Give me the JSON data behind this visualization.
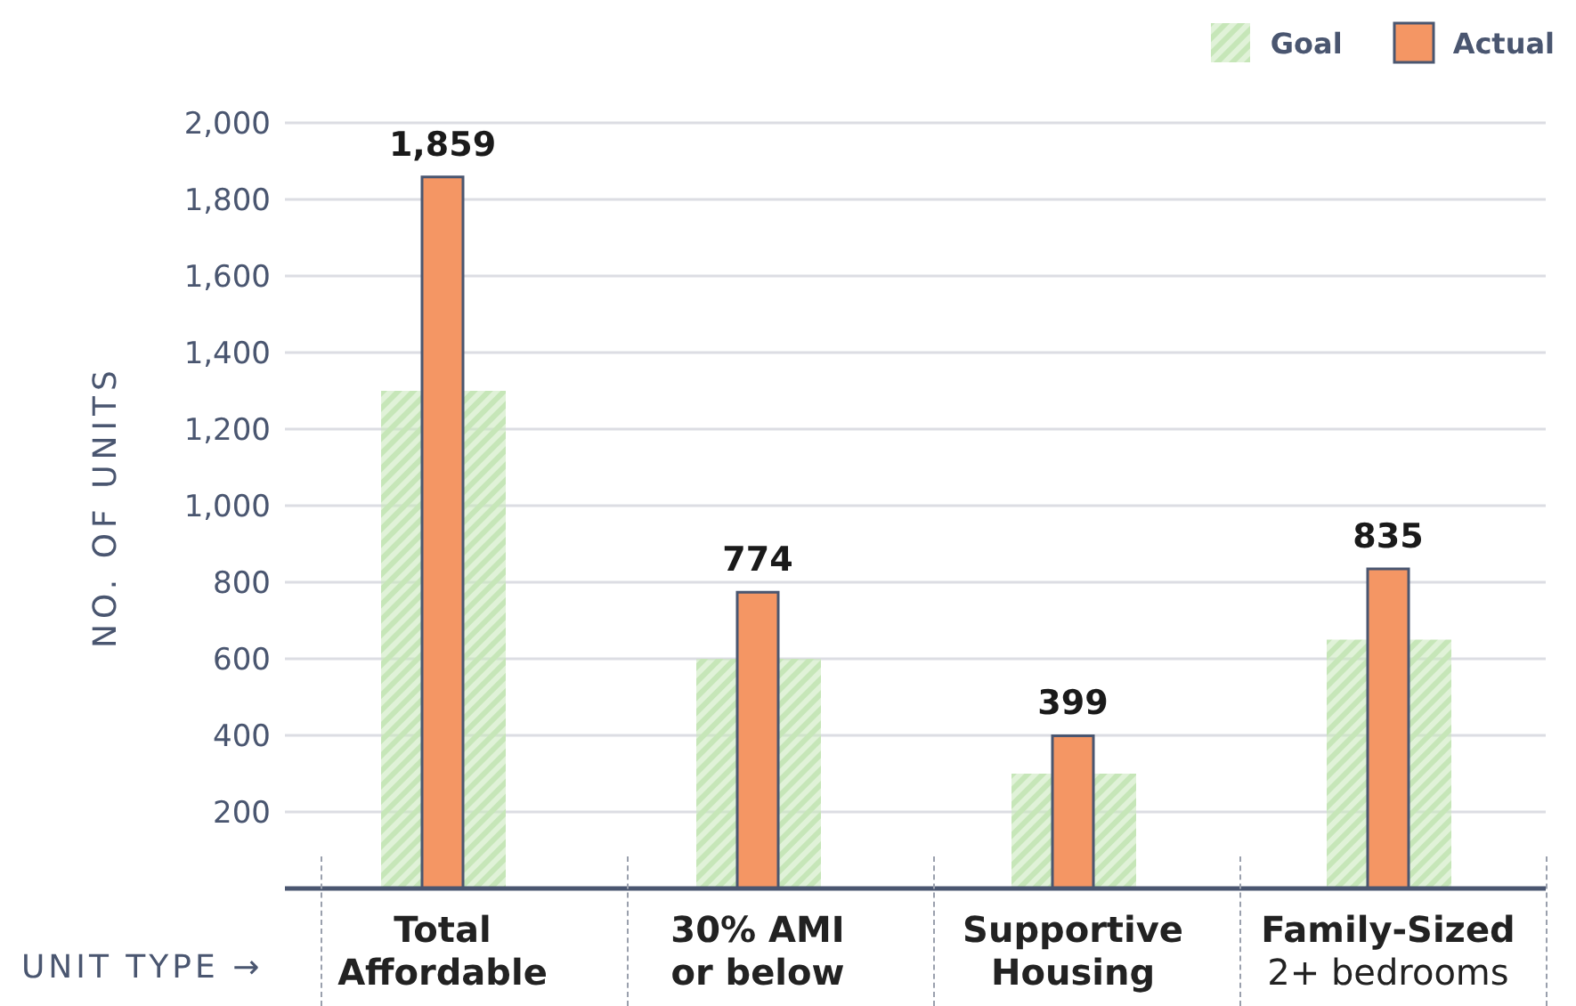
{
  "chart_data": {
    "type": "bar",
    "categories": [
      "Total\nAffordable",
      "30% AMI\nor below",
      "Supportive\nHousing",
      "Family-Sized\n2+ bedrooms"
    ],
    "xlabel": "UNIT TYPE →",
    "ylabel": "NO. OF UNITS",
    "series": [
      {
        "name": "Goal",
        "color": "#c6e6b8",
        "values": [
          1300,
          600,
          300,
          650
        ]
      },
      {
        "name": "Actual",
        "color": "#f49664",
        "values": [
          1859,
          774,
          399,
          835
        ],
        "value_labels": [
          "1,859",
          "774",
          "399",
          "835"
        ]
      }
    ],
    "ylim": [
      0,
      2000
    ],
    "yticks": [
      200,
      400,
      600,
      800,
      {
        "value": 1000,
        "label": "1,000"
      },
      {
        "value": 1200,
        "label": "1,200"
      },
      {
        "value": 1400,
        "label": "1,400"
      },
      {
        "value": 1600,
        "label": "1,600"
      },
      {
        "value": 1800,
        "label": "1,800"
      },
      {
        "value": 2000,
        "label": "2,000"
      }
    ],
    "grid": "y",
    "legend": "top right"
  }
}
